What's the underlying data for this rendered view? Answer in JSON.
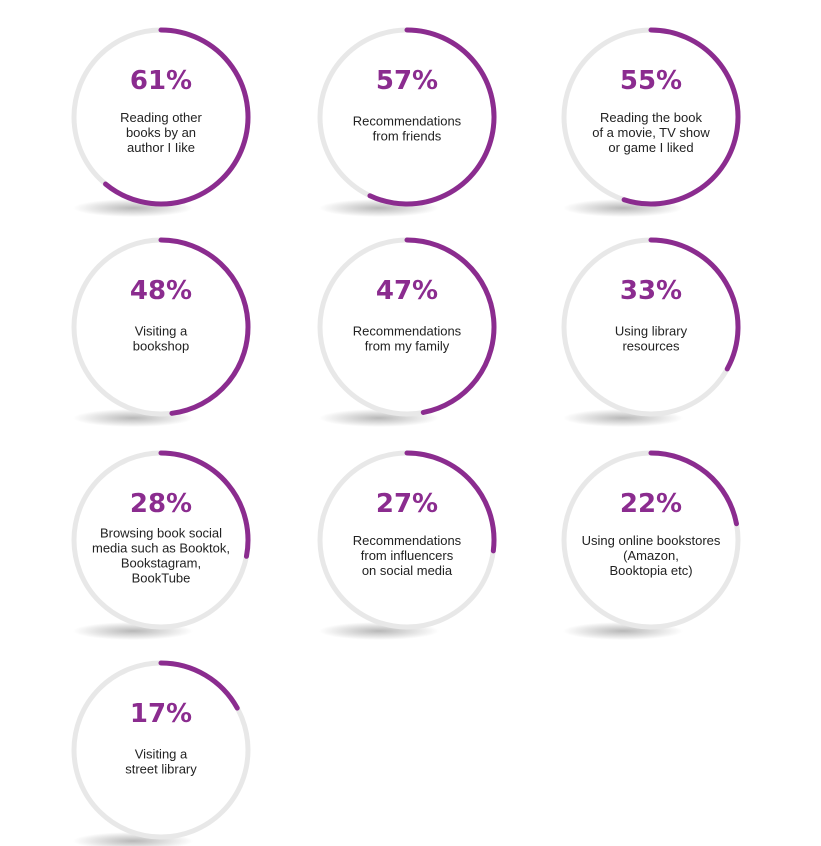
{
  "colors": {
    "accent": "#8B2C8F",
    "track": "#E8E8E8",
    "text": "#222222",
    "shadow": "#000000"
  },
  "chart_data": {
    "type": "radial-progress",
    "unit": "%",
    "items": [
      {
        "value": 61,
        "display": "61%",
        "label": [
          "Reading other",
          "books by an",
          "author I Iike"
        ]
      },
      {
        "value": 57,
        "display": "57%",
        "label": [
          "Recommendations",
          "from friends"
        ]
      },
      {
        "value": 55,
        "display": "55%",
        "label": [
          "Reading the book",
          "of a movie, TV show",
          "or game I liked"
        ]
      },
      {
        "value": 48,
        "display": "48%",
        "label": [
          "Visiting a",
          "bookshop"
        ]
      },
      {
        "value": 47,
        "display": "47%",
        "label": [
          "Recommendations",
          "from my family"
        ]
      },
      {
        "value": 33,
        "display": "33%",
        "label": [
          "Using library",
          "resources"
        ]
      },
      {
        "value": 28,
        "display": "28%",
        "label": [
          "Browsing book social",
          "media such as Booktok,",
          "Bookstagram,",
          "BookTube"
        ]
      },
      {
        "value": 27,
        "display": "27%",
        "label": [
          "Recommendations",
          "from influencers",
          "on social media"
        ]
      },
      {
        "value": 22,
        "display": "22%",
        "label": [
          "Using online bookstores",
          "(Amazon,",
          "Booktopia etc)"
        ]
      },
      {
        "value": 17,
        "display": "17%",
        "label": [
          "Visiting a",
          "street library"
        ]
      }
    ]
  }
}
